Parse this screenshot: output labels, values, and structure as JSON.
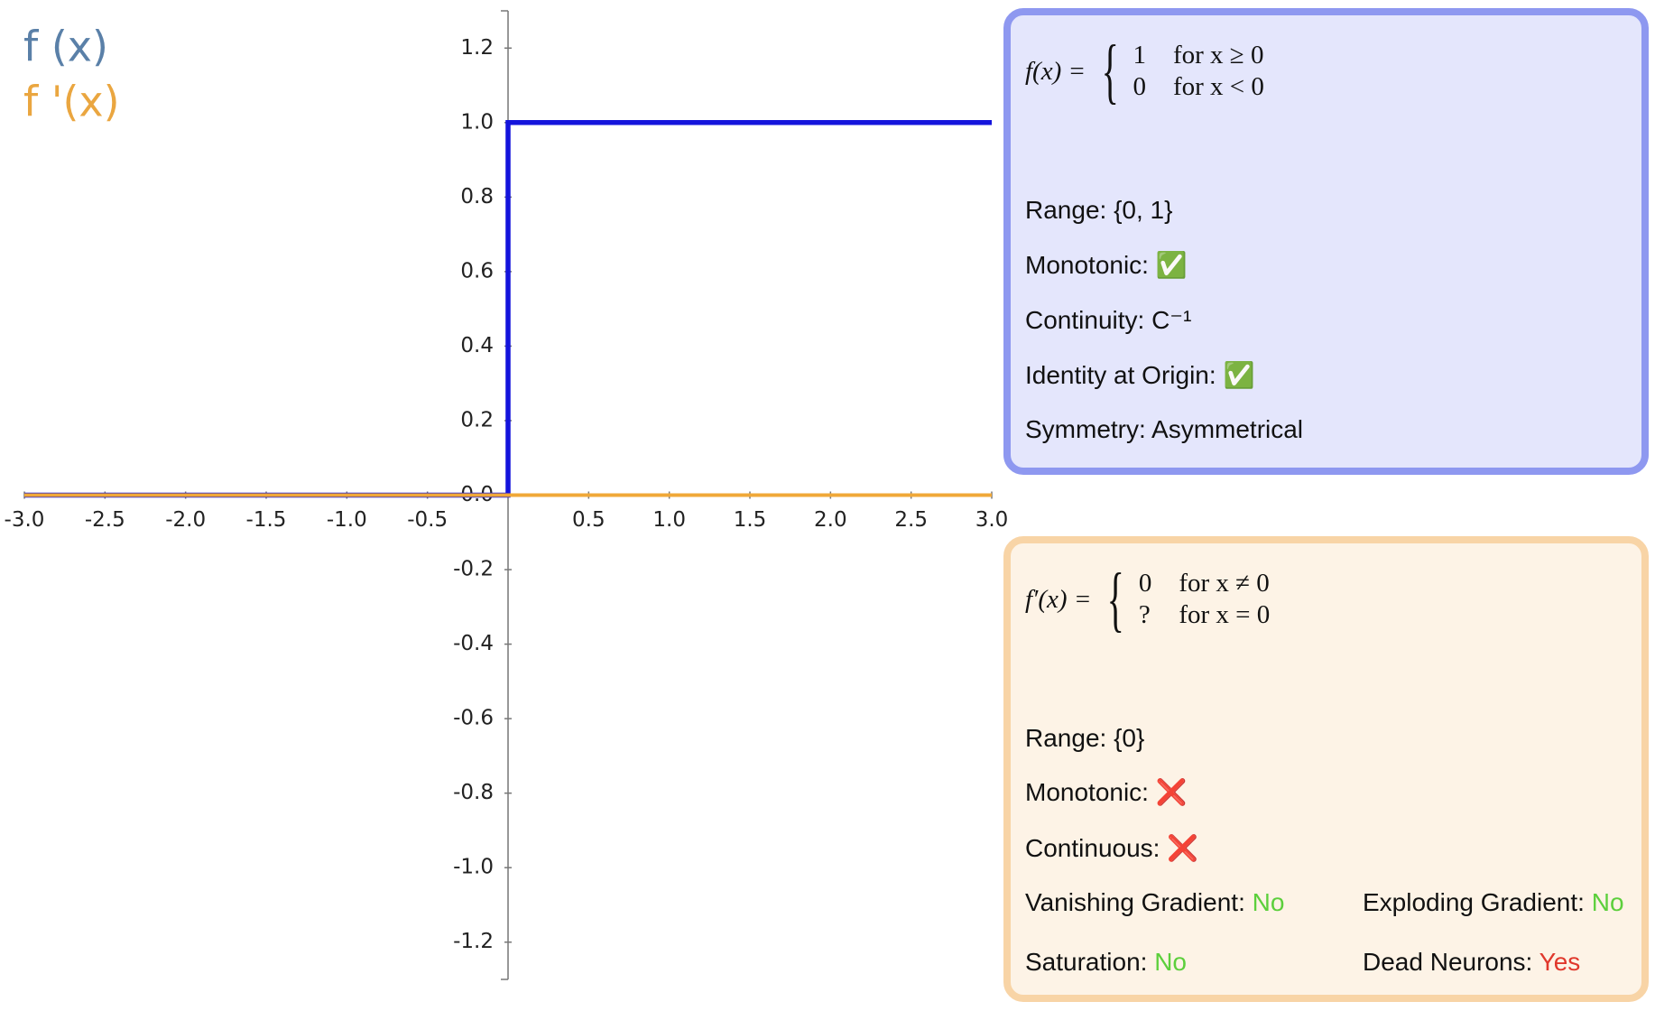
{
  "chart_data": {
    "type": "line",
    "legend": "top-left",
    "series": [
      {
        "name": "f (x)",
        "color": "#1414dc",
        "legend_color": "#5a80a8",
        "x": [
          -3,
          0,
          0,
          3
        ],
        "values": [
          0,
          0,
          1,
          1
        ]
      },
      {
        "name": "f '(x)",
        "color": "#f0a838",
        "legend_color": "#eaa640",
        "x": [
          -3,
          3
        ],
        "values": [
          0,
          0
        ]
      }
    ],
    "xlim": [
      -3,
      3
    ],
    "ylim": [
      -1.3,
      1.3
    ],
    "xticks": [
      {
        "value": -3,
        "label": "-3.0"
      },
      {
        "value": -2.5,
        "label": "-2.5"
      },
      {
        "value": -2,
        "label": "-2.0"
      },
      {
        "value": -1.5,
        "label": "-1.5"
      },
      {
        "value": -1,
        "label": "-1.0"
      },
      {
        "value": -0.5,
        "label": "-0.5"
      },
      0.5,
      {
        "value": 1,
        "label": "1.0"
      },
      1.5,
      {
        "value": 2,
        "label": "2.0"
      },
      2.5,
      {
        "value": 3,
        "label": "3.0"
      }
    ],
    "yticks": [
      {
        "value": -1.2,
        "label": "-1.2"
      },
      {
        "value": -1,
        "label": "-1.0"
      },
      -0.8,
      -0.6,
      -0.4,
      -0.2,
      {
        "value": 0,
        "label": "0.0"
      },
      0.2,
      0.4,
      0.6,
      0.8,
      {
        "value": 1,
        "label": "1.0"
      },
      1.2
    ]
  },
  "panels": [
    {
      "formula": {
        "lhs": "f(x) =",
        "cases": [
          {
            "value": "1",
            "condition": "for x ≥ 0"
          },
          {
            "value": "0",
            "condition": "for x < 0"
          }
        ]
      },
      "properties": [
        {
          "label": "Range:",
          "value": "{0, 1}"
        },
        {
          "label": "Monotonic:",
          "value": "✅"
        },
        {
          "label": "Continuity:",
          "value": "C⁻¹"
        },
        {
          "label": "Identity at Origin:",
          "value": "✅"
        },
        {
          "label": "Symmetry:",
          "value": "Asymmetrical"
        }
      ]
    },
    {
      "formula": {
        "lhs": "f′(x) =",
        "cases": [
          {
            "value": "0",
            "condition": "for x ≠ 0"
          },
          {
            "value": "?",
            "condition": "for x = 0"
          }
        ]
      },
      "properties": [
        {
          "label": "Range:",
          "value": "{0}"
        },
        {
          "label": "Monotonic:",
          "value": "❌"
        },
        {
          "label": "Continuous:",
          "value": "❌"
        }
      ],
      "gradient_properties": [
        {
          "label": "Vanishing Gradient:",
          "value": "No",
          "color": "#5ccf3c"
        },
        {
          "label": "Exploding Gradient:",
          "value": "No",
          "color": "#5ccf3c"
        },
        {
          "label": "Saturation:",
          "value": "No",
          "color": "#5ccf3c"
        },
        {
          "label": "Dead Neurons:",
          "value": "Yes",
          "color": "#e0382c"
        }
      ]
    }
  ]
}
